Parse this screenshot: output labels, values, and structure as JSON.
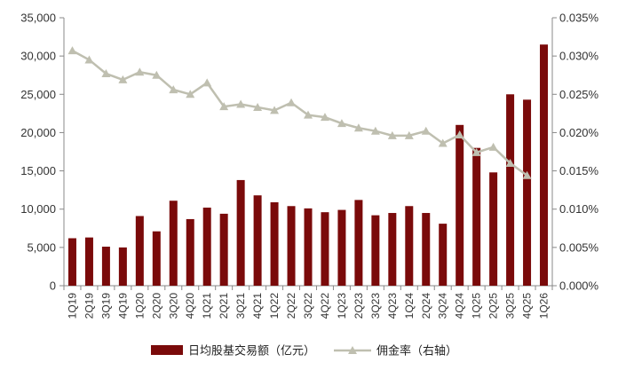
{
  "chart_data": {
    "type": "bar+line",
    "categories": [
      "1Q19",
      "2Q19",
      "3Q19",
      "4Q19",
      "1Q20",
      "2Q20",
      "3Q20",
      "4Q20",
      "1Q21",
      "2Q21",
      "3Q21",
      "4Q21",
      "1Q22",
      "2Q22",
      "3Q22",
      "4Q22",
      "1Q23",
      "2Q23",
      "3Q23",
      "4Q23",
      "1Q24",
      "2Q24",
      "3Q24",
      "4Q24",
      "1Q25",
      "2Q25",
      "3Q25",
      "4Q25",
      "1Q26"
    ],
    "series": [
      {
        "name": "日均股基交易额（亿元）",
        "kind": "bar",
        "axis": "left",
        "color": "#7a0a0a",
        "values": [
          6200,
          6300,
          5100,
          5000,
          9100,
          7100,
          11100,
          8700,
          10200,
          9400,
          13800,
          11800,
          10900,
          10400,
          10100,
          9600,
          9900,
          11200,
          9200,
          9500,
          10400,
          9500,
          8100,
          21000,
          18000,
          14800,
          25000,
          24300,
          31500
        ]
      },
      {
        "name": "佣金率（右轴）",
        "kind": "line",
        "axis": "right",
        "color": "#bfbfb0",
        "marker": "triangle",
        "values": [
          0.0307,
          0.0295,
          0.0277,
          0.0269,
          0.0279,
          0.0275,
          0.0256,
          0.025,
          0.0265,
          0.0234,
          0.0237,
          0.0233,
          0.0229,
          0.0239,
          0.0223,
          0.022,
          0.0212,
          0.0206,
          0.0202,
          0.0196,
          0.0196,
          0.0202,
          0.0186,
          0.0197,
          0.0174,
          0.0181,
          0.016,
          0.0144,
          null
        ]
      }
    ],
    "y_left": {
      "min": 0,
      "max": 35000,
      "step": 5000
    },
    "y_right": {
      "min": 0,
      "max": 0.035,
      "step": 0.005
    },
    "y_left_ticks": [
      "0",
      "5,000",
      "10,000",
      "15,000",
      "20,000",
      "25,000",
      "30,000",
      "35,000"
    ],
    "y_right_ticks": [
      "0.000%",
      "0.005%",
      "0.010%",
      "0.015%",
      "0.020%",
      "0.025%",
      "0.030%",
      "0.035%"
    ],
    "grid": false,
    "legend_position": "bottom"
  }
}
